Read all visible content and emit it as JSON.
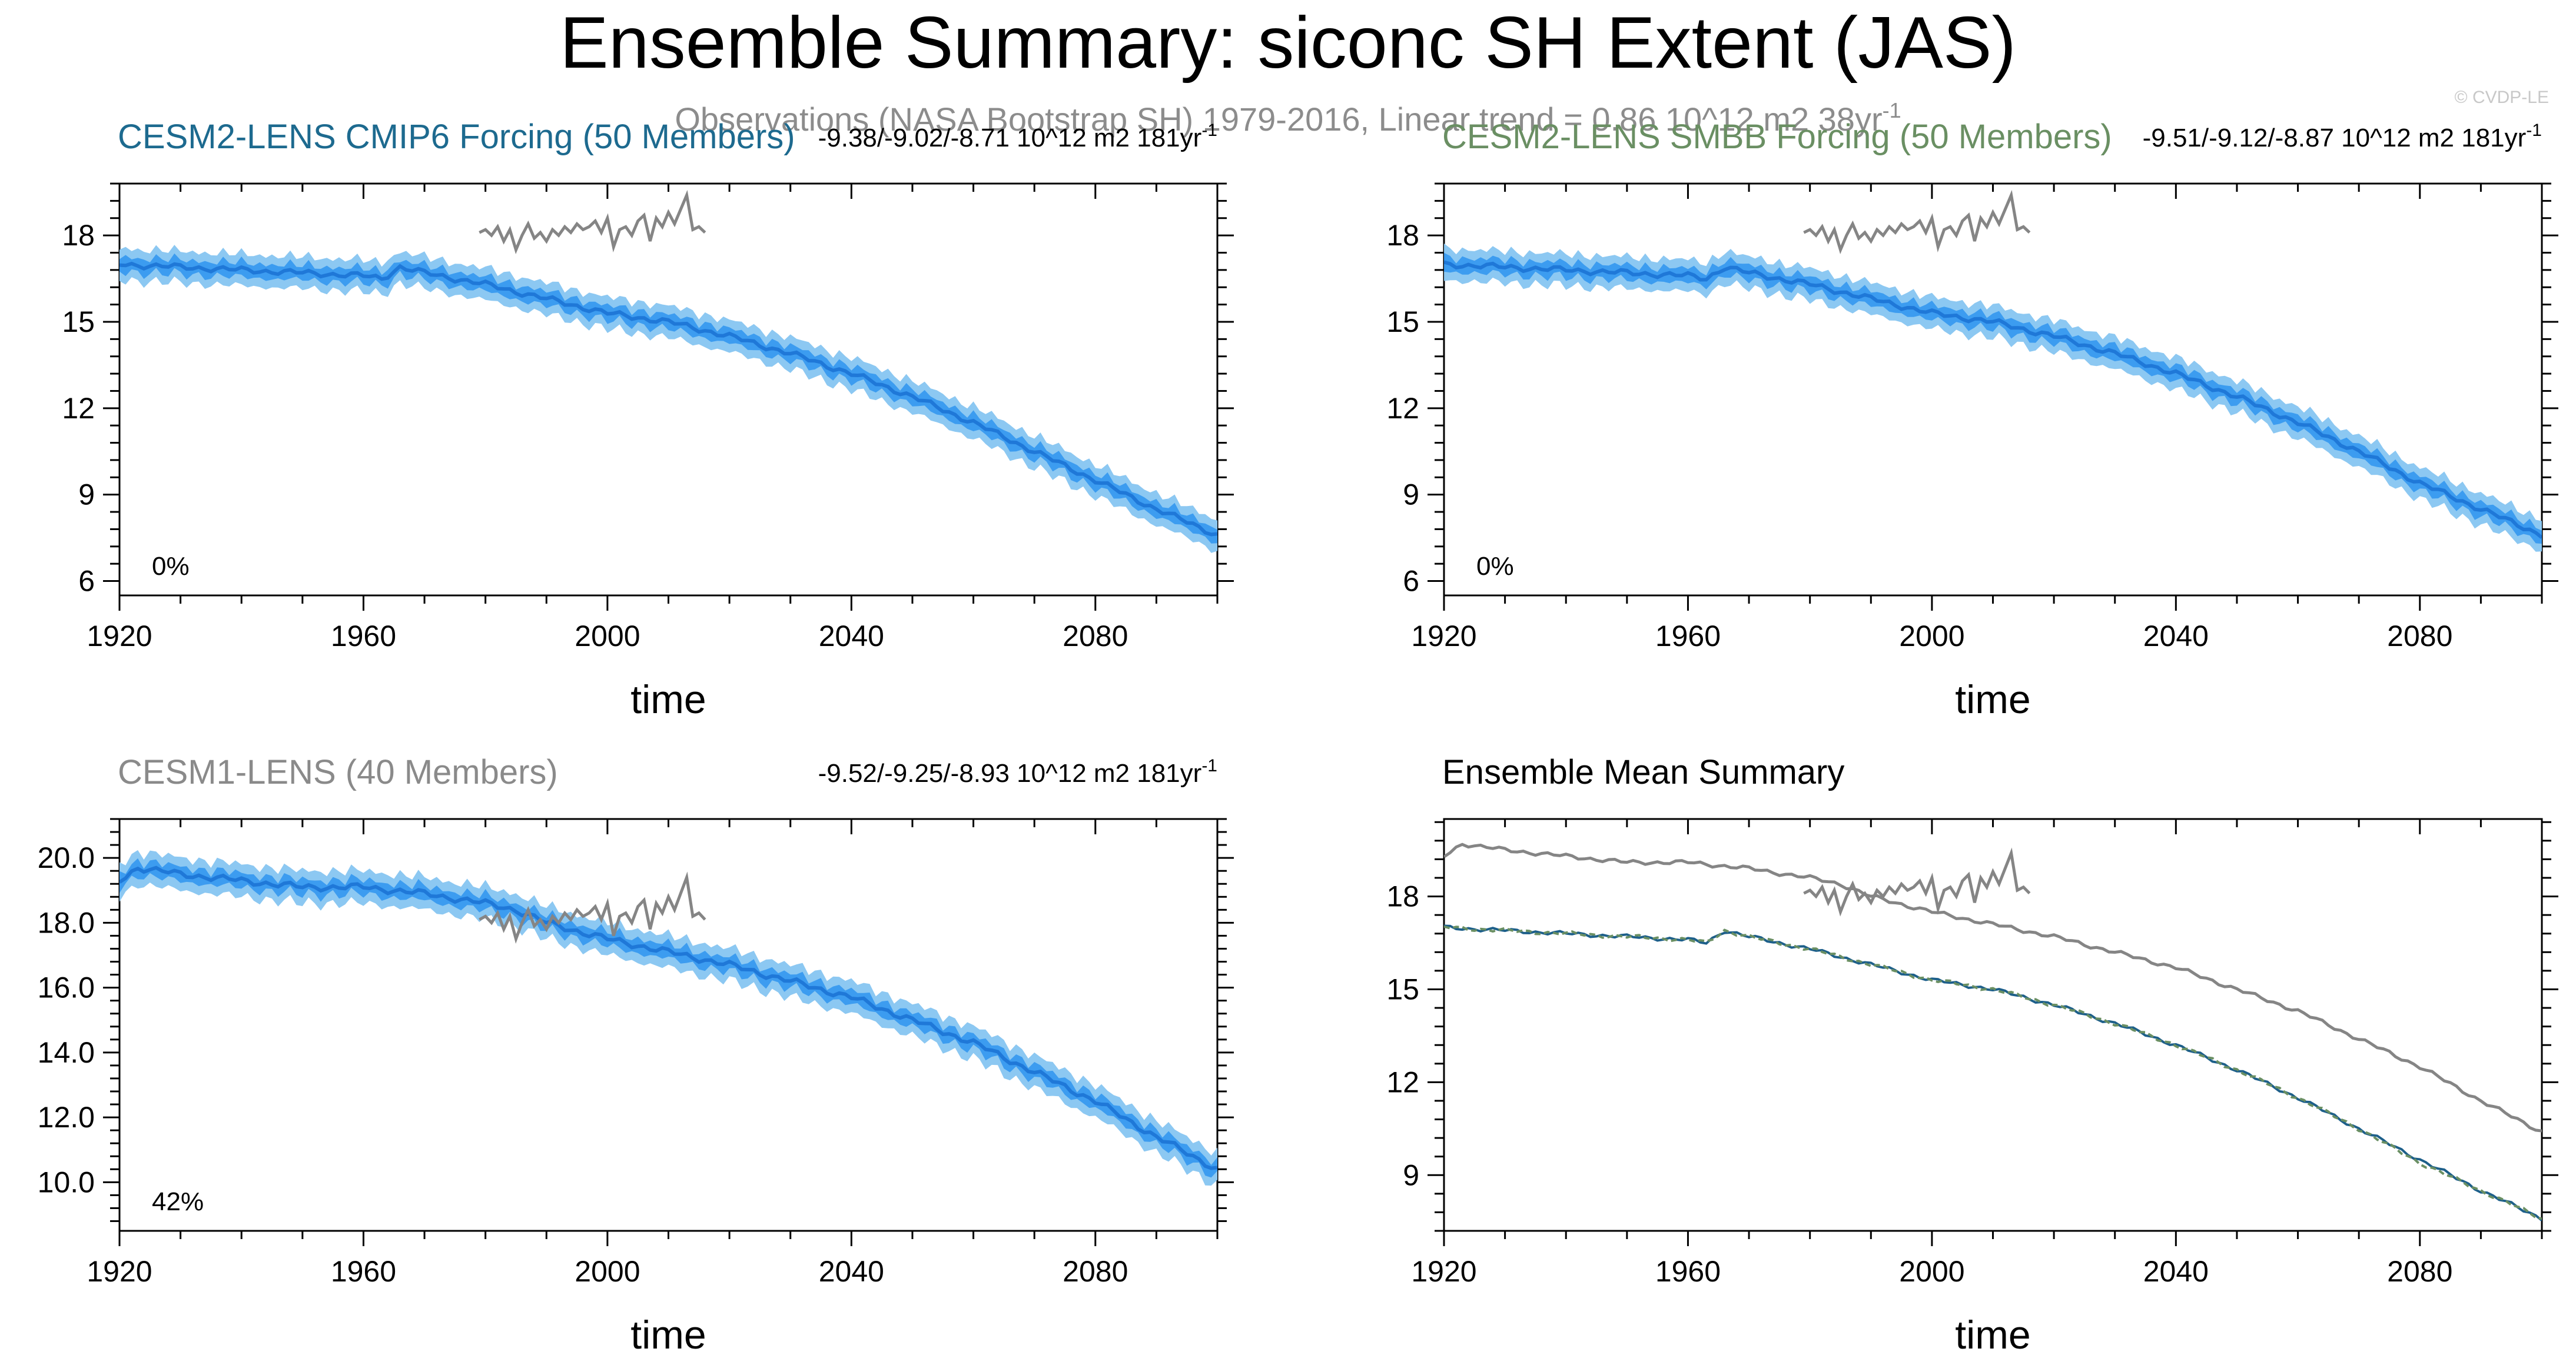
{
  "figure": {
    "title": "Ensemble Summary: siconc SH Extent (JAS)",
    "obs_label": "Observations (NASA Bootstrap SH) 1979-2016, Linear trend = 0.86 10^12 m2 38yr",
    "obs_trend_unit": "-1",
    "watermark": "© CVDP-LE",
    "colors": {
      "spread_outer": "#8cc8f2",
      "spread_inner": "#3c9cf0",
      "ens_mean": "#1f78d8",
      "obs": "#858585",
      "cesm2_cmip6": "#1d6a8f",
      "cesm2_smbb": "#6a8f63",
      "cesm1": "#8a8a8a",
      "axis": "#000000"
    }
  },
  "chart_data": [
    {
      "id": "panel-cesm2-cmip6",
      "type": "line",
      "title": "CESM2-LENS CMIP6 Forcing (50 Members)",
      "title_color": "#1d6a8f",
      "trend_text": "-9.38/-9.02/-8.71 10^12 m2 181yr",
      "trend_unit": "-1",
      "percent_label": "0%",
      "xlabel": "time",
      "ylabel": "",
      "xlim": [
        1920,
        2100
      ],
      "ylim": [
        5.5,
        19.8
      ],
      "xticks": [
        1920,
        1960,
        2000,
        2040,
        2080
      ],
      "yticks": [
        6,
        9,
        12,
        15,
        18
      ],
      "ytick_labels": [
        "6",
        "9",
        "12",
        "15",
        "18"
      ],
      "spread_outer_halfwidth": 0.55,
      "spread_inner_halfwidth": 0.25,
      "ens_mean": {
        "x": [
          1920,
          1930,
          1940,
          1950,
          1960,
          1963,
          1966,
          1970,
          1980,
          1990,
          2000,
          2010,
          2020,
          2030,
          2040,
          2050,
          2060,
          2070,
          2080,
          2090,
          2100
        ],
        "y": [
          17.0,
          16.9,
          16.8,
          16.7,
          16.6,
          16.5,
          16.9,
          16.7,
          16.3,
          15.8,
          15.3,
          15.0,
          14.5,
          13.9,
          13.2,
          12.4,
          11.5,
          10.5,
          9.5,
          8.5,
          7.6
        ]
      },
      "observations": {
        "x": [
          1979,
          1980,
          1981,
          1982,
          1983,
          1984,
          1985,
          1986,
          1987,
          1988,
          1989,
          1990,
          1991,
          1992,
          1993,
          1994,
          1995,
          1996,
          1997,
          1998,
          1999,
          2000,
          2001,
          2002,
          2003,
          2004,
          2005,
          2006,
          2007,
          2008,
          2009,
          2010,
          2011,
          2012,
          2013,
          2014,
          2015,
          2016
        ],
        "y": [
          18.1,
          18.2,
          18.0,
          18.3,
          17.8,
          18.2,
          17.5,
          18.0,
          18.4,
          17.9,
          18.1,
          17.8,
          18.2,
          18.0,
          18.3,
          18.1,
          18.4,
          18.2,
          18.3,
          18.5,
          18.1,
          18.6,
          17.6,
          18.2,
          18.3,
          18.0,
          18.5,
          18.7,
          17.8,
          18.6,
          18.3,
          18.8,
          18.4,
          18.9,
          19.4,
          18.2,
          18.3,
          18.1
        ]
      }
    },
    {
      "id": "panel-cesm2-smbb",
      "type": "line",
      "title": "CESM2-LENS SMBB Forcing (50 Members)",
      "title_color": "#6a8f63",
      "trend_text": "-9.51/-9.12/-8.87 10^12 m2 181yr",
      "trend_unit": "-1",
      "percent_label": "0%",
      "xlabel": "time",
      "ylabel": "",
      "xlim": [
        1920,
        2100
      ],
      "ylim": [
        5.5,
        19.8
      ],
      "xticks": [
        1920,
        1960,
        2000,
        2040,
        2080
      ],
      "yticks": [
        6,
        9,
        12,
        15,
        18
      ],
      "ytick_labels": [
        "6",
        "9",
        "12",
        "15",
        "18"
      ],
      "spread_outer_halfwidth": 0.55,
      "spread_inner_halfwidth": 0.25,
      "ens_mean": {
        "x": [
          1920,
          1930,
          1940,
          1950,
          1960,
          1963,
          1966,
          1970,
          1980,
          1990,
          2000,
          2010,
          2020,
          2030,
          2040,
          2050,
          2060,
          2070,
          2080,
          2090,
          2100
        ],
        "y": [
          17.0,
          16.9,
          16.8,
          16.7,
          16.6,
          16.5,
          16.9,
          16.7,
          16.3,
          15.8,
          15.3,
          15.0,
          14.5,
          13.9,
          13.2,
          12.4,
          11.5,
          10.5,
          9.4,
          8.5,
          7.6
        ]
      },
      "observations": {
        "x": [
          1979,
          1980,
          1981,
          1982,
          1983,
          1984,
          1985,
          1986,
          1987,
          1988,
          1989,
          1990,
          1991,
          1992,
          1993,
          1994,
          1995,
          1996,
          1997,
          1998,
          1999,
          2000,
          2001,
          2002,
          2003,
          2004,
          2005,
          2006,
          2007,
          2008,
          2009,
          2010,
          2011,
          2012,
          2013,
          2014,
          2015,
          2016
        ],
        "y": [
          18.1,
          18.2,
          18.0,
          18.3,
          17.8,
          18.2,
          17.5,
          18.0,
          18.4,
          17.9,
          18.1,
          17.8,
          18.2,
          18.0,
          18.3,
          18.1,
          18.4,
          18.2,
          18.3,
          18.5,
          18.1,
          18.6,
          17.6,
          18.2,
          18.3,
          18.0,
          18.5,
          18.7,
          17.8,
          18.6,
          18.3,
          18.8,
          18.4,
          18.9,
          19.4,
          18.2,
          18.3,
          18.1
        ]
      }
    },
    {
      "id": "panel-cesm1",
      "type": "line",
      "title": "CESM1-LENS (40 Members)",
      "title_color": "#8a8a8a",
      "trend_text": "-9.52/-9.25/-8.93 10^12 m2 181yr",
      "trend_unit": "-1",
      "percent_label": "42%",
      "xlabel": "time",
      "ylabel": "",
      "xlim": [
        1920,
        2100
      ],
      "ylim": [
        8.5,
        21.2
      ],
      "xticks": [
        1920,
        1960,
        2000,
        2040,
        2080
      ],
      "yticks": [
        10,
        12,
        14,
        16,
        18,
        20
      ],
      "ytick_labels": [
        "10.0",
        "12.0",
        "14.0",
        "16.0",
        "18.0",
        "20.0"
      ],
      "spread_outer_halfwidth": 0.5,
      "spread_inner_halfwidth": 0.22,
      "ens_mean": {
        "x": [
          1920,
          1923,
          1930,
          1940,
          1950,
          1960,
          1970,
          1980,
          1985,
          1990,
          2000,
          2010,
          2020,
          2030,
          2040,
          2050,
          2060,
          2070,
          2080,
          2090,
          2100
        ],
        "y": [
          19.3,
          19.7,
          19.5,
          19.3,
          19.1,
          19.1,
          18.9,
          18.6,
          18.4,
          18.0,
          17.5,
          17.1,
          16.7,
          16.2,
          15.7,
          15.0,
          14.3,
          13.4,
          12.5,
          11.4,
          10.4
        ]
      },
      "observations": {
        "x": [
          1979,
          1980,
          1981,
          1982,
          1983,
          1984,
          1985,
          1986,
          1987,
          1988,
          1989,
          1990,
          1991,
          1992,
          1993,
          1994,
          1995,
          1996,
          1997,
          1998,
          1999,
          2000,
          2001,
          2002,
          2003,
          2004,
          2005,
          2006,
          2007,
          2008,
          2009,
          2010,
          2011,
          2012,
          2013,
          2014,
          2015,
          2016
        ],
        "y": [
          18.1,
          18.2,
          18.0,
          18.3,
          17.8,
          18.2,
          17.5,
          18.0,
          18.4,
          17.9,
          18.1,
          17.8,
          18.2,
          18.0,
          18.3,
          18.1,
          18.4,
          18.2,
          18.3,
          18.5,
          18.1,
          18.6,
          17.6,
          18.2,
          18.3,
          18.0,
          18.5,
          18.7,
          17.8,
          18.6,
          18.3,
          18.8,
          18.4,
          18.9,
          19.4,
          18.2,
          18.3,
          18.1
        ]
      }
    },
    {
      "id": "panel-summary",
      "type": "line",
      "title": "Ensemble Mean Summary",
      "title_color": "#000000",
      "xlabel": "time",
      "ylabel": "",
      "xlim": [
        1920,
        2100
      ],
      "ylim": [
        7.2,
        20.5
      ],
      "xticks": [
        1920,
        1960,
        2000,
        2040,
        2080
      ],
      "yticks": [
        9,
        12,
        15,
        18
      ],
      "ytick_labels": [
        "9",
        "12",
        "15",
        "18"
      ],
      "series": [
        {
          "name": "CESM1-LENS",
          "color": "#858585",
          "x": [
            1920,
            1923,
            1930,
            1940,
            1950,
            1960,
            1970,
            1980,
            1985,
            1990,
            2000,
            2010,
            2020,
            2030,
            2040,
            2050,
            2060,
            2070,
            2080,
            2090,
            2100
          ],
          "y": [
            19.3,
            19.7,
            19.5,
            19.3,
            19.1,
            19.1,
            18.9,
            18.6,
            18.4,
            18.0,
            17.5,
            17.1,
            16.7,
            16.2,
            15.7,
            15.0,
            14.3,
            13.4,
            12.5,
            11.4,
            10.4
          ]
        },
        {
          "name": "CESM2-LENS CMIP6 Forcing",
          "color": "#1d5f8a",
          "x": [
            1920,
            1930,
            1940,
            1950,
            1960,
            1963,
            1966,
            1970,
            1980,
            1990,
            2000,
            2010,
            2020,
            2030,
            2040,
            2050,
            2060,
            2070,
            2080,
            2090,
            2100
          ],
          "y": [
            17.0,
            16.9,
            16.8,
            16.7,
            16.6,
            16.5,
            16.9,
            16.7,
            16.3,
            15.8,
            15.3,
            15.0,
            14.5,
            13.9,
            13.2,
            12.4,
            11.5,
            10.5,
            9.5,
            8.5,
            7.6
          ]
        },
        {
          "name": "CESM2-LENS SMBB Forcing",
          "color": "#6a8f63",
          "x": [
            1920,
            1930,
            1940,
            1950,
            1960,
            1963,
            1966,
            1970,
            1980,
            1990,
            2000,
            2010,
            2020,
            2030,
            2040,
            2050,
            2060,
            2070,
            2080,
            2090,
            2100
          ],
          "y": [
            17.0,
            16.9,
            16.8,
            16.7,
            16.6,
            16.5,
            16.9,
            16.7,
            16.3,
            15.8,
            15.3,
            15.0,
            14.5,
            13.9,
            13.2,
            12.4,
            11.5,
            10.5,
            9.4,
            8.5,
            7.6
          ]
        }
      ],
      "observations": {
        "x": [
          1979,
          1980,
          1981,
          1982,
          1983,
          1984,
          1985,
          1986,
          1987,
          1988,
          1989,
          1990,
          1991,
          1992,
          1993,
          1994,
          1995,
          1996,
          1997,
          1998,
          1999,
          2000,
          2001,
          2002,
          2003,
          2004,
          2005,
          2006,
          2007,
          2008,
          2009,
          2010,
          2011,
          2012,
          2013,
          2014,
          2015,
          2016
        ],
        "y": [
          18.1,
          18.2,
          18.0,
          18.3,
          17.8,
          18.2,
          17.5,
          18.0,
          18.4,
          17.9,
          18.1,
          17.8,
          18.2,
          18.0,
          18.3,
          18.1,
          18.4,
          18.2,
          18.3,
          18.5,
          18.1,
          18.6,
          17.6,
          18.2,
          18.3,
          18.0,
          18.5,
          18.7,
          17.8,
          18.6,
          18.3,
          18.8,
          18.4,
          18.9,
          19.4,
          18.2,
          18.3,
          18.1
        ]
      }
    }
  ]
}
